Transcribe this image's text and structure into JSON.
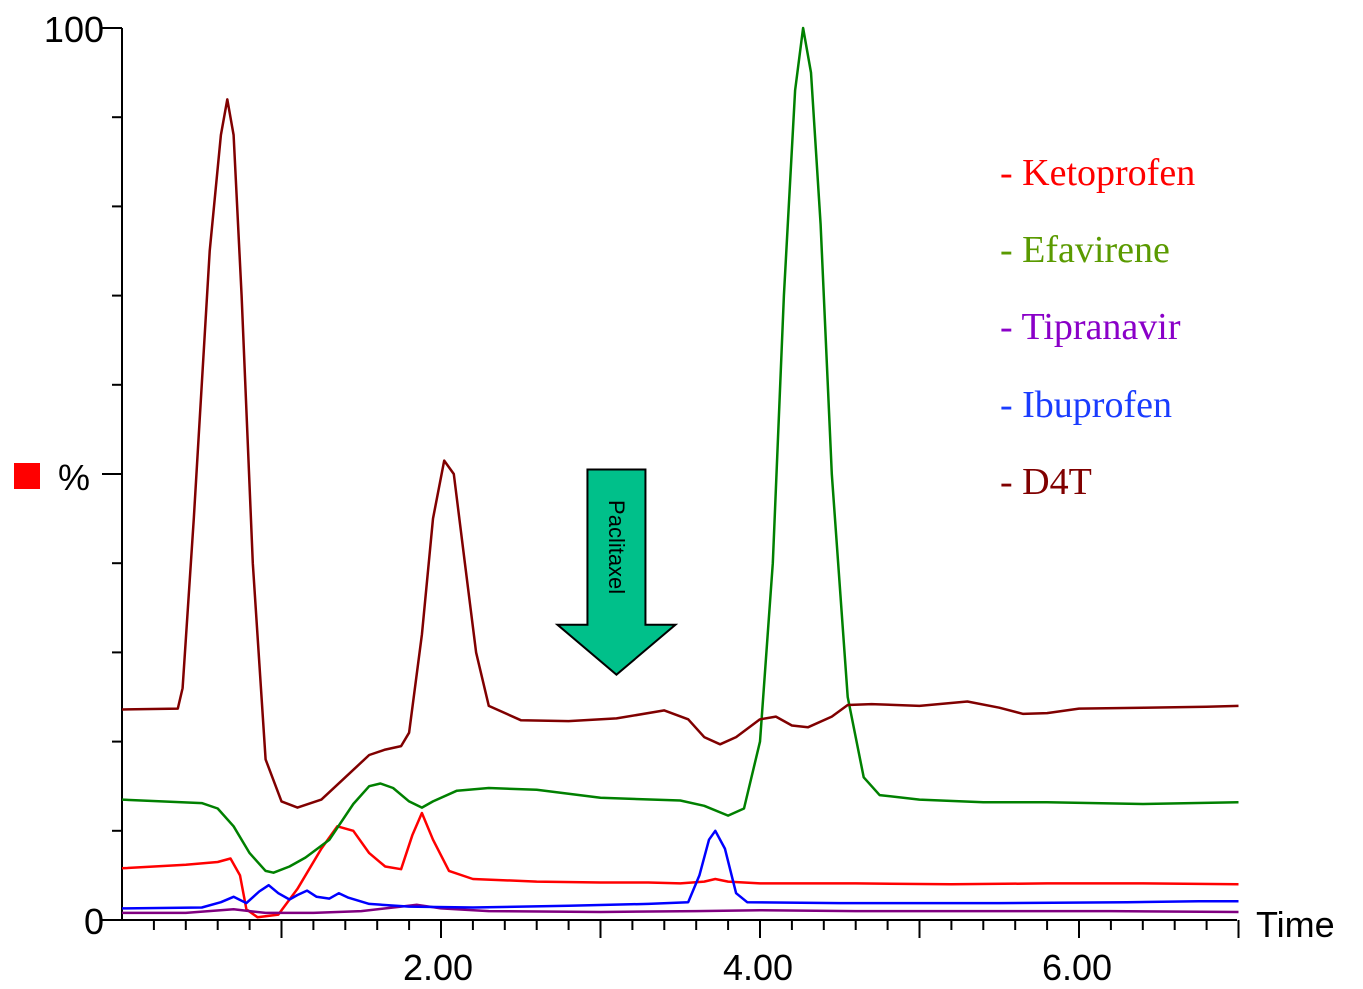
{
  "chart_data": {
    "type": "line",
    "xlabel": "Time",
    "ylabel": "%",
    "xlim": [
      0,
      7.0
    ],
    "ylim": [
      0,
      100
    ],
    "x_ticks": [
      2.0,
      4.0,
      6.0
    ],
    "x_tick_labels": [
      "2.00",
      "4.00",
      "6.00"
    ],
    "y_tick_labels": [
      {
        "value": 100,
        "label": "100"
      },
      {
        "value": 0,
        "label": "0"
      }
    ],
    "grid": false,
    "legend_position": "top-right",
    "series": [
      {
        "name": "- Ketoprofen",
        "color": "#ff0000",
        "points": [
          [
            0,
            5.8
          ],
          [
            0.4,
            6.2
          ],
          [
            0.6,
            6.5
          ],
          [
            0.68,
            6.9
          ],
          [
            0.74,
            5.0
          ],
          [
            0.78,
            1.2
          ],
          [
            0.85,
            0.3
          ],
          [
            0.98,
            0.6
          ],
          [
            1.1,
            3.5
          ],
          [
            1.25,
            8.0
          ],
          [
            1.35,
            10.5
          ],
          [
            1.45,
            10.0
          ],
          [
            1.55,
            7.5
          ],
          [
            1.65,
            6.0
          ],
          [
            1.75,
            5.7
          ],
          [
            1.82,
            9.5
          ],
          [
            1.88,
            12.0
          ],
          [
            1.95,
            9.0
          ],
          [
            2.05,
            5.5
          ],
          [
            2.2,
            4.6
          ],
          [
            2.6,
            4.3
          ],
          [
            3.0,
            4.2
          ],
          [
            3.3,
            4.2
          ],
          [
            3.5,
            4.1
          ],
          [
            3.65,
            4.3
          ],
          [
            3.72,
            4.6
          ],
          [
            3.8,
            4.3
          ],
          [
            4.0,
            4.1
          ],
          [
            4.6,
            4.1
          ],
          [
            5.2,
            4.0
          ],
          [
            5.8,
            4.1
          ],
          [
            6.4,
            4.1
          ],
          [
            7.0,
            4.0
          ]
        ]
      },
      {
        "name": "- Efavirene",
        "color": "#008000",
        "points": [
          [
            0,
            13.5
          ],
          [
            0.5,
            13.1
          ],
          [
            0.6,
            12.5
          ],
          [
            0.7,
            10.5
          ],
          [
            0.8,
            7.5
          ],
          [
            0.9,
            5.5
          ],
          [
            0.95,
            5.3
          ],
          [
            1.05,
            6.0
          ],
          [
            1.15,
            7.0
          ],
          [
            1.3,
            9.0
          ],
          [
            1.45,
            13.0
          ],
          [
            1.55,
            15.0
          ],
          [
            1.62,
            15.3
          ],
          [
            1.7,
            14.8
          ],
          [
            1.8,
            13.3
          ],
          [
            1.88,
            12.6
          ],
          [
            1.95,
            13.3
          ],
          [
            2.1,
            14.5
          ],
          [
            2.3,
            14.8
          ],
          [
            2.6,
            14.6
          ],
          [
            3.0,
            13.7
          ],
          [
            3.5,
            13.4
          ],
          [
            3.65,
            12.8
          ],
          [
            3.8,
            11.7
          ],
          [
            3.9,
            12.5
          ],
          [
            4.0,
            20.0
          ],
          [
            4.08,
            40.0
          ],
          [
            4.15,
            70.0
          ],
          [
            4.22,
            93.0
          ],
          [
            4.27,
            100.0
          ],
          [
            4.32,
            95.0
          ],
          [
            4.38,
            78.0
          ],
          [
            4.45,
            50.0
          ],
          [
            4.55,
            25.0
          ],
          [
            4.65,
            16.0
          ],
          [
            4.75,
            14.0
          ],
          [
            5.0,
            13.5
          ],
          [
            5.4,
            13.2
          ],
          [
            5.8,
            13.2
          ],
          [
            6.4,
            13.0
          ],
          [
            7.0,
            13.2
          ]
        ]
      },
      {
        "name": "- Tipranavir",
        "color": "#800080",
        "points": [
          [
            0,
            0.8
          ],
          [
            0.4,
            0.8
          ],
          [
            0.7,
            1.2
          ],
          [
            0.9,
            0.8
          ],
          [
            1.2,
            0.8
          ],
          [
            1.5,
            1.0
          ],
          [
            1.75,
            1.5
          ],
          [
            1.85,
            1.7
          ],
          [
            2.0,
            1.3
          ],
          [
            2.3,
            1.0
          ],
          [
            3.0,
            0.9
          ],
          [
            3.6,
            1.0
          ],
          [
            4.0,
            1.1
          ],
          [
            4.6,
            1.0
          ],
          [
            5.5,
            1.0
          ],
          [
            6.2,
            1.0
          ],
          [
            7.0,
            0.9
          ]
        ]
      },
      {
        "name": "- Ibuprofen",
        "color": "#0000ff",
        "points": [
          [
            0,
            1.3
          ],
          [
            0.5,
            1.4
          ],
          [
            0.62,
            2.0
          ],
          [
            0.7,
            2.6
          ],
          [
            0.78,
            1.9
          ],
          [
            0.86,
            3.2
          ],
          [
            0.92,
            3.9
          ],
          [
            0.98,
            3.0
          ],
          [
            1.05,
            2.3
          ],
          [
            1.1,
            2.8
          ],
          [
            1.16,
            3.3
          ],
          [
            1.22,
            2.6
          ],
          [
            1.3,
            2.4
          ],
          [
            1.36,
            3.0
          ],
          [
            1.42,
            2.5
          ],
          [
            1.55,
            1.8
          ],
          [
            1.8,
            1.5
          ],
          [
            2.2,
            1.4
          ],
          [
            2.8,
            1.6
          ],
          [
            3.3,
            1.8
          ],
          [
            3.55,
            2.0
          ],
          [
            3.62,
            5.0
          ],
          [
            3.68,
            9.0
          ],
          [
            3.72,
            10.0
          ],
          [
            3.78,
            8.0
          ],
          [
            3.85,
            3.0
          ],
          [
            3.92,
            2.0
          ],
          [
            4.5,
            1.9
          ],
          [
            5.5,
            1.9
          ],
          [
            6.3,
            2.0
          ],
          [
            6.75,
            2.1
          ],
          [
            7.0,
            2.1
          ]
        ]
      },
      {
        "name": "- D4T",
        "color": "#800000",
        "points": [
          [
            0,
            23.6
          ],
          [
            0.35,
            23.7
          ],
          [
            0.38,
            26.0
          ],
          [
            0.45,
            45.0
          ],
          [
            0.55,
            75.0
          ],
          [
            0.62,
            88.0
          ],
          [
            0.66,
            92.0
          ],
          [
            0.7,
            88.0
          ],
          [
            0.75,
            70.0
          ],
          [
            0.82,
            40.0
          ],
          [
            0.9,
            18.0
          ],
          [
            1.0,
            13.3
          ],
          [
            1.1,
            12.6
          ],
          [
            1.25,
            13.5
          ],
          [
            1.4,
            16.0
          ],
          [
            1.55,
            18.5
          ],
          [
            1.65,
            19.1
          ],
          [
            1.75,
            19.5
          ],
          [
            1.8,
            21.0
          ],
          [
            1.88,
            32.0
          ],
          [
            1.95,
            45.0
          ],
          [
            2.02,
            51.5
          ],
          [
            2.08,
            50.0
          ],
          [
            2.15,
            40.0
          ],
          [
            2.22,
            30.0
          ],
          [
            2.3,
            24.0
          ],
          [
            2.5,
            22.4
          ],
          [
            2.8,
            22.3
          ],
          [
            3.1,
            22.6
          ],
          [
            3.4,
            23.5
          ],
          [
            3.55,
            22.5
          ],
          [
            3.65,
            20.5
          ],
          [
            3.75,
            19.7
          ],
          [
            3.85,
            20.5
          ],
          [
            4.0,
            22.5
          ],
          [
            4.1,
            22.8
          ],
          [
            4.2,
            21.8
          ],
          [
            4.3,
            21.6
          ],
          [
            4.45,
            22.8
          ],
          [
            4.55,
            24.1
          ],
          [
            4.7,
            24.2
          ],
          [
            5.0,
            24.0
          ],
          [
            5.3,
            24.5
          ],
          [
            5.5,
            23.8
          ],
          [
            5.65,
            23.1
          ],
          [
            5.8,
            23.2
          ],
          [
            6.0,
            23.7
          ],
          [
            6.4,
            23.8
          ],
          [
            6.8,
            23.9
          ],
          [
            7.0,
            24.0
          ]
        ]
      }
    ],
    "annotation": {
      "text": "Paclitaxel",
      "color": "#00c08a",
      "arrow_x": 3.1,
      "arrow_tip_y": 27.5,
      "arrow_top_y": 50.5
    }
  }
}
